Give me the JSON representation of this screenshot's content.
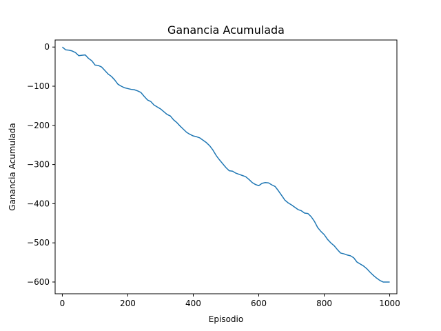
{
  "chart_data": {
    "type": "line",
    "title": "Ganancia Acumulada",
    "xlabel": "Episodio",
    "ylabel": "Ganancia Acumulada",
    "xlim": [
      -22,
      1022
    ],
    "ylim": [
      -630,
      18
    ],
    "xticks": [
      0,
      200,
      400,
      600,
      800,
      1000
    ],
    "yticks": [
      0,
      -100,
      -200,
      -300,
      -400,
      -500,
      -600
    ],
    "grid": false,
    "line_color": "#1f77b4",
    "series": [
      {
        "x": [
          0,
          10,
          20,
          30,
          40,
          50,
          60,
          70,
          80,
          90,
          100,
          110,
          120,
          130,
          140,
          150,
          160,
          170,
          180,
          190,
          200,
          210,
          220,
          230,
          240,
          250,
          260,
          270,
          280,
          290,
          300,
          310,
          320,
          330,
          340,
          350,
          360,
          370,
          380,
          390,
          400,
          410,
          420,
          430,
          440,
          450,
          460,
          470,
          480,
          490,
          500,
          510,
          520,
          530,
          540,
          550,
          560,
          570,
          580,
          590,
          600,
          610,
          620,
          630,
          640,
          650,
          660,
          670,
          680,
          690,
          700,
          710,
          720,
          730,
          740,
          750,
          760,
          770,
          780,
          790,
          800,
          810,
          820,
          830,
          840,
          850,
          860,
          870,
          880,
          890,
          900,
          910,
          920,
          930,
          940,
          950,
          960,
          970,
          980,
          990,
          1000
        ],
        "values": [
          0,
          -7,
          -8,
          -10,
          -14,
          -22,
          -21,
          -20,
          -29,
          -35,
          -46,
          -47,
          -51,
          -60,
          -69,
          -75,
          -84,
          -95,
          -100,
          -104,
          -106,
          -108,
          -109,
          -112,
          -116,
          -126,
          -135,
          -139,
          -148,
          -153,
          -158,
          -165,
          -172,
          -176,
          -186,
          -193,
          -202,
          -210,
          -218,
          -223,
          -227,
          -229,
          -232,
          -238,
          -244,
          -252,
          -263,
          -277,
          -288,
          -298,
          -308,
          -316,
          -317,
          -322,
          -325,
          -328,
          -331,
          -338,
          -346,
          -351,
          -354,
          -348,
          -346,
          -347,
          -352,
          -356,
          -367,
          -379,
          -391,
          -398,
          -403,
          -409,
          -415,
          -418,
          -424,
          -425,
          -433,
          -445,
          -461,
          -471,
          -479,
          -491,
          -500,
          -507,
          -517,
          -526,
          -528,
          -531,
          -533,
          -538,
          -549,
          -554,
          -559,
          -566,
          -575,
          -583,
          -590,
          -596,
          -600,
          -600,
          -600
        ]
      }
    ]
  }
}
